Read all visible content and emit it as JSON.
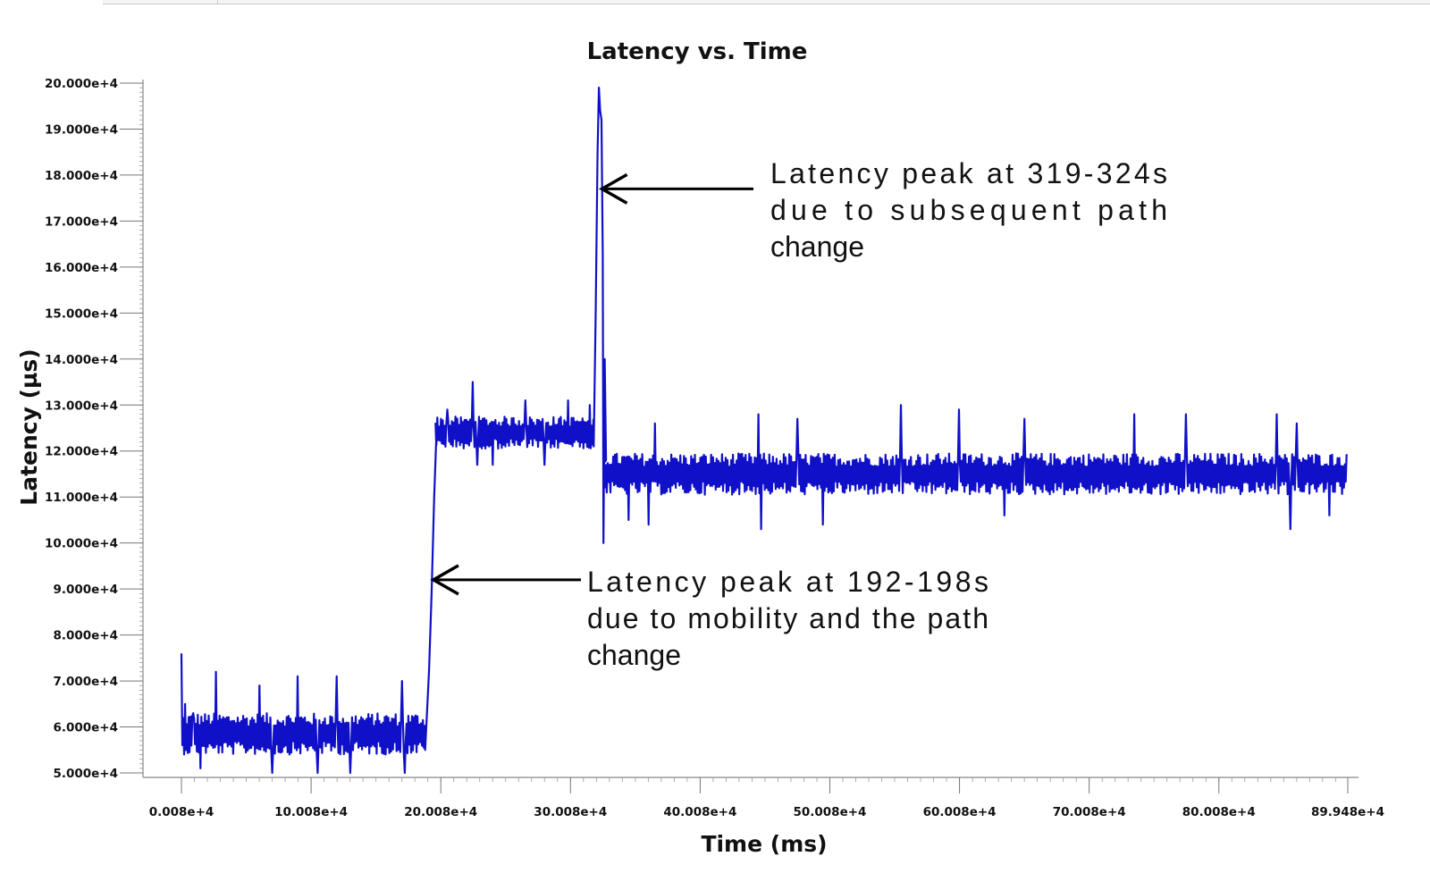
{
  "chart_data": {
    "type": "line",
    "title": "Latency vs. Time",
    "xlabel": "Time (ms)",
    "ylabel": "Latency (µs)",
    "xlim": [
      80,
      899480
    ],
    "ylim": [
      50000,
      200000
    ],
    "x_ticks": [
      {
        "value": 80,
        "label": "0.008e+4"
      },
      {
        "value": 100080,
        "label": "10.008e+4"
      },
      {
        "value": 200080,
        "label": "20.008e+4"
      },
      {
        "value": 300080,
        "label": "30.008e+4"
      },
      {
        "value": 400080,
        "label": "40.008e+4"
      },
      {
        "value": 500080,
        "label": "50.008e+4"
      },
      {
        "value": 600080,
        "label": "60.008e+4"
      },
      {
        "value": 700080,
        "label": "70.008e+4"
      },
      {
        "value": 800080,
        "label": "80.008e+4"
      },
      {
        "value": 899480,
        "label": "89.948e+4"
      }
    ],
    "y_ticks": [
      {
        "value": 50000,
        "label": "5.000e+4"
      },
      {
        "value": 60000,
        "label": "6.000e+4"
      },
      {
        "value": 70000,
        "label": "7.000e+4"
      },
      {
        "value": 80000,
        "label": "8.000e+4"
      },
      {
        "value": 90000,
        "label": "9.000e+4"
      },
      {
        "value": 100000,
        "label": "10.000e+4"
      },
      {
        "value": 110000,
        "label": "11.000e+4"
      },
      {
        "value": 120000,
        "label": "12.000e+4"
      },
      {
        "value": 130000,
        "label": "13.000e+4"
      },
      {
        "value": 140000,
        "label": "14.000e+4"
      },
      {
        "value": 150000,
        "label": "15.000e+4"
      },
      {
        "value": 160000,
        "label": "16.000e+4"
      },
      {
        "value": 170000,
        "label": "17.000e+4"
      },
      {
        "value": 180000,
        "label": "18.000e+4"
      },
      {
        "value": 190000,
        "label": "19.000e+4"
      },
      {
        "value": 200000,
        "label": "20.000e+4"
      }
    ],
    "grid": false,
    "line_color": "#1010c8",
    "series": [
      {
        "segments": [
          {
            "x_start": 80,
            "x_end": 188000,
            "mean": 58500,
            "amplitude": 4500,
            "peaks": [
              [
                80,
                76000
              ],
              [
                3000,
                65000
              ],
              [
                9000,
                63000
              ],
              [
                27000,
                72000
              ],
              [
                60000,
                69000
              ],
              [
                90000,
                71000
              ],
              [
                120000,
                71000
              ],
              [
                170000,
                70000
              ]
            ],
            "dips": [
              [
                15000,
                51000
              ],
              [
                70000,
                50000
              ],
              [
                105000,
                50000
              ],
              [
                130000,
                50000
              ],
              [
                172000,
                50000
              ]
            ]
          },
          {
            "x_start": 196000,
            "x_end": 318000,
            "mean": 124000,
            "amplitude": 3500,
            "peaks": [
              [
                205000,
                129000
              ],
              [
                225000,
                135000
              ],
              [
                265000,
                131000
              ],
              [
                298000,
                131000
              ],
              [
                315000,
                130000
              ]
            ],
            "dips": [
              [
                228000,
                117000
              ],
              [
                240000,
                117000
              ],
              [
                280000,
                117000
              ]
            ]
          },
          {
            "x_start": 326000,
            "x_end": 899000,
            "mean": 115000,
            "amplitude": 4500,
            "peaks": [
              [
                345000,
                127000
              ],
              [
                365000,
                126000
              ],
              [
                445000,
                128000
              ],
              [
                475000,
                127000
              ],
              [
                555000,
                130000
              ],
              [
                600000,
                129000
              ],
              [
                650000,
                127000
              ],
              [
                735000,
                128000
              ],
              [
                775000,
                128000
              ],
              [
                845000,
                128000
              ],
              [
                860000,
                126000
              ]
            ],
            "dips": [
              [
                345000,
                105000
              ],
              [
                360000,
                104000
              ],
              [
                447000,
                103000
              ],
              [
                495000,
                104000
              ],
              [
                635000,
                106000
              ],
              [
                855000,
                103000
              ],
              [
                885000,
                106000
              ]
            ]
          }
        ],
        "transitions": [
          [
            [
              188000,
              55000
            ],
            [
              191000,
              72000
            ],
            [
              193000,
              89000
            ],
            [
              195000,
              110000
            ],
            [
              196500,
              122000
            ]
          ],
          [
            [
              318000,
              121000
            ],
            [
              319500,
              150000
            ],
            [
              321000,
              185000
            ],
            [
              322000,
              199000
            ],
            [
              323000,
              194000
            ],
            [
              324000,
              192000
            ],
            [
              325000,
              163000
            ],
            [
              325500,
              100000
            ],
            [
              326500,
              140000
            ],
            [
              327500,
              118000
            ]
          ]
        ]
      }
    ],
    "annotations": [
      {
        "lines": [
          "Latency peak at 319-324s",
          "due to subsequent path",
          "change"
        ],
        "arrow_to": [
          323000,
          177000
        ]
      },
      {
        "lines": [
          "Latency peak at 192-198s",
          "due to mobility and the path",
          "change"
        ],
        "arrow_to": [
          193000,
          92000
        ]
      }
    ]
  }
}
